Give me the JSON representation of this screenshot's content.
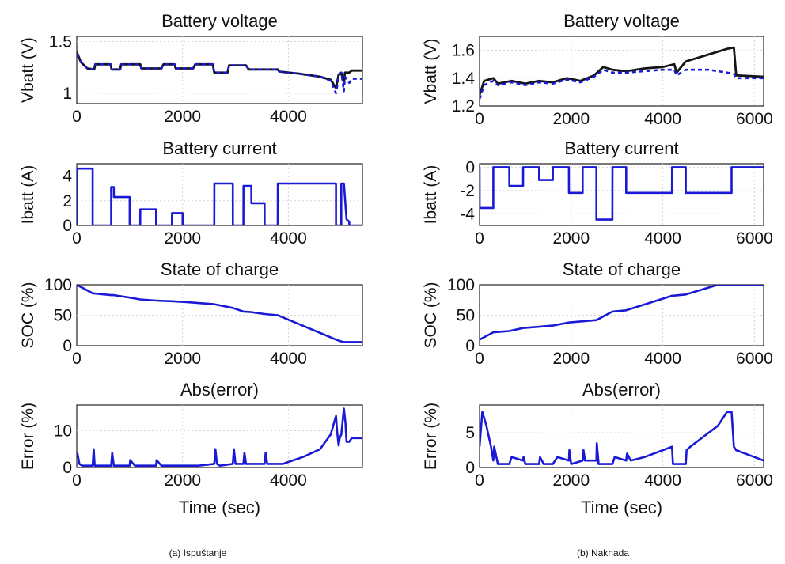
{
  "captions": {
    "left": "(a) Ispuštanje",
    "right": "(b) Naknada"
  },
  "colors": {
    "true": "#151515",
    "estimate": "#1a1ad6"
  },
  "chart_data": [
    {
      "id": "L_volt",
      "type": "line",
      "title": "Battery voltage",
      "ylabel": "Vbatt (V)",
      "xlabel": "",
      "xlim": [
        0,
        5400
      ],
      "ylim": [
        0.9,
        1.55
      ],
      "xticks": [
        0,
        2000,
        4000
      ],
      "yticks": [
        1,
        1.5
      ],
      "yticklabels": [
        "1",
        "1.5"
      ],
      "grid": true,
      "series": [
        {
          "role": "true",
          "style": "solid",
          "x": [
            0,
            80,
            200,
            330,
            350,
            640,
            660,
            820,
            840,
            1200,
            1220,
            1600,
            1640,
            1850,
            1870,
            2200,
            2240,
            2570,
            2600,
            2850,
            2880,
            3000,
            3200,
            3250,
            3500,
            3800,
            3830,
            4200,
            4600,
            4800,
            4900,
            4950,
            5000,
            5050,
            5070,
            5150,
            5200,
            5400
          ],
          "y": [
            1.4,
            1.3,
            1.24,
            1.23,
            1.28,
            1.28,
            1.23,
            1.23,
            1.28,
            1.28,
            1.24,
            1.24,
            1.28,
            1.28,
            1.24,
            1.24,
            1.28,
            1.28,
            1.2,
            1.2,
            1.27,
            1.27,
            1.27,
            1.23,
            1.23,
            1.23,
            1.21,
            1.19,
            1.16,
            1.13,
            1.05,
            1.18,
            1.2,
            1.1,
            1.2,
            1.2,
            1.22,
            1.22
          ]
        },
        {
          "role": "estimate",
          "style": "dashed",
          "x": [
            0,
            80,
            200,
            330,
            350,
            640,
            660,
            820,
            840,
            1200,
            1220,
            1600,
            1640,
            1850,
            1870,
            2200,
            2240,
            2570,
            2600,
            2850,
            2880,
            3000,
            3200,
            3250,
            3500,
            3800,
            3830,
            4200,
            4600,
            4800,
            4900,
            4950,
            5000,
            5050,
            5070,
            5150,
            5200,
            5400
          ],
          "y": [
            1.38,
            1.3,
            1.24,
            1.23,
            1.28,
            1.28,
            1.23,
            1.23,
            1.28,
            1.28,
            1.24,
            1.24,
            1.28,
            1.28,
            1.24,
            1.24,
            1.28,
            1.28,
            1.2,
            1.2,
            1.27,
            1.27,
            1.27,
            1.23,
            1.23,
            1.23,
            1.21,
            1.19,
            1.16,
            1.12,
            1.0,
            1.16,
            1.2,
            1.02,
            1.16,
            1.1,
            1.14,
            1.14
          ]
        }
      ]
    },
    {
      "id": "L_curr",
      "type": "line",
      "title": "Battery current",
      "ylabel": "Ibatt (A)",
      "xlabel": "",
      "xlim": [
        0,
        5400
      ],
      "ylim": [
        0,
        5
      ],
      "xticks": [
        0,
        2000,
        4000
      ],
      "yticks": [
        0,
        2,
        4
      ],
      "yticklabels": [
        "0",
        "2",
        "4"
      ],
      "grid": true,
      "series": [
        {
          "role": "estimate",
          "style": "solid",
          "x": [
            0,
            1,
            300,
            301,
            650,
            651,
            700,
            701,
            1000,
            1001,
            1200,
            1201,
            1500,
            1501,
            1800,
            1801,
            2000,
            2001,
            2300,
            2301,
            2600,
            2601,
            2950,
            2951,
            3150,
            3151,
            3300,
            3301,
            3550,
            3551,
            3800,
            3801,
            4900,
            4901,
            5000,
            5001,
            5050,
            5100,
            5150,
            5151,
            5400
          ],
          "y": [
            0,
            4.6,
            4.6,
            0,
            0,
            3.1,
            3.1,
            2.3,
            2.3,
            0,
            0,
            1.3,
            1.3,
            0,
            0,
            1.0,
            1.0,
            0,
            0,
            0,
            0,
            3.4,
            3.4,
            0,
            0,
            3.2,
            3.2,
            1.8,
            1.8,
            0,
            0,
            3.4,
            3.4,
            0,
            0,
            3.4,
            3.4,
            0.5,
            0.3,
            0,
            0
          ]
        }
      ]
    },
    {
      "id": "L_soc",
      "type": "line",
      "title": "State of charge",
      "ylabel": "SOC (%)",
      "xlabel": "",
      "xlim": [
        0,
        5400
      ],
      "ylim": [
        0,
        100
      ],
      "xticks": [
        0,
        2000,
        4000
      ],
      "yticks": [
        0,
        50,
        100
      ],
      "yticklabels": [
        "0",
        "50",
        "100"
      ],
      "grid": true,
      "series": [
        {
          "role": "estimate",
          "style": "solid",
          "x": [
            0,
            300,
            650,
            700,
            1000,
            1200,
            1500,
            1800,
            2000,
            2300,
            2600,
            2950,
            3150,
            3300,
            3550,
            3800,
            4900,
            5000,
            5050,
            5150,
            5400
          ],
          "y": [
            100,
            86,
            83,
            83,
            79,
            76,
            74,
            73,
            72,
            70,
            68,
            62,
            56,
            55,
            52,
            50,
            10,
            7,
            6,
            6,
            6
          ]
        }
      ]
    },
    {
      "id": "L_err",
      "type": "line",
      "title": "Abs(error)",
      "ylabel": "Error (%)",
      "xlabel": "Time (sec)",
      "xlim": [
        0,
        5400
      ],
      "ylim": [
        0,
        17
      ],
      "xticks": [
        0,
        2000,
        4000
      ],
      "yticks": [
        0,
        10
      ],
      "yticklabels": [
        "0",
        "10"
      ],
      "grid": true,
      "series": [
        {
          "role": "estimate",
          "style": "solid",
          "x": [
            0,
            10,
            50,
            100,
            300,
            320,
            340,
            400,
            650,
            670,
            700,
            1000,
            1010,
            1100,
            1200,
            1500,
            1510,
            1600,
            1800,
            2000,
            2300,
            2600,
            2620,
            2650,
            2700,
            2950,
            2970,
            3000,
            3150,
            3170,
            3200,
            3550,
            3570,
            3600,
            3800,
            3900,
            4000,
            4300,
            4600,
            4800,
            4900,
            4920,
            4950,
            4970,
            5000,
            5050,
            5080,
            5100,
            5150,
            5200,
            5400
          ],
          "y": [
            3,
            4,
            1,
            0.5,
            0.5,
            5,
            0.5,
            0.5,
            0.5,
            4,
            0.5,
            0.5,
            2,
            0.5,
            0.5,
            0.5,
            2,
            0.5,
            0.5,
            0.5,
            0.5,
            1,
            5,
            1,
            0.5,
            1,
            5,
            1,
            1,
            4,
            1,
            1,
            4,
            1,
            1,
            1,
            1.5,
            3,
            5,
            9,
            14,
            10,
            6,
            8,
            9,
            16,
            12,
            7,
            7,
            8,
            8
          ]
        }
      ]
    },
    {
      "id": "R_volt",
      "type": "line",
      "title": "Battery voltage",
      "ylabel": "Vbatt (V)",
      "xlabel": "",
      "xlim": [
        0,
        6200
      ],
      "ylim": [
        1.2,
        1.7
      ],
      "xticks": [
        0,
        2000,
        4000,
        6000
      ],
      "yticks": [
        1.2,
        1.4,
        1.6
      ],
      "yticklabels": [
        "1.2",
        "1.4",
        "1.6"
      ],
      "grid": true,
      "series": [
        {
          "role": "true",
          "style": "solid",
          "x": [
            0,
            100,
            300,
            400,
            700,
            1000,
            1300,
            1600,
            1900,
            2200,
            2500,
            2700,
            2900,
            3200,
            3600,
            4000,
            4250,
            4300,
            4500,
            5000,
            5400,
            5550,
            5600,
            6200
          ],
          "y": [
            1.28,
            1.38,
            1.4,
            1.36,
            1.38,
            1.36,
            1.38,
            1.37,
            1.4,
            1.38,
            1.42,
            1.48,
            1.46,
            1.45,
            1.47,
            1.48,
            1.5,
            1.44,
            1.52,
            1.57,
            1.61,
            1.62,
            1.42,
            1.41
          ]
        },
        {
          "role": "estimate",
          "style": "dashed",
          "x": [
            0,
            100,
            300,
            400,
            700,
            1000,
            1300,
            1600,
            1900,
            2200,
            2500,
            2700,
            2900,
            3200,
            3600,
            4000,
            4250,
            4300,
            4500,
            5000,
            5400,
            5550,
            5600,
            6200
          ],
          "y": [
            1.25,
            1.35,
            1.38,
            1.35,
            1.37,
            1.35,
            1.37,
            1.36,
            1.39,
            1.37,
            1.41,
            1.46,
            1.44,
            1.44,
            1.45,
            1.46,
            1.46,
            1.42,
            1.46,
            1.46,
            1.44,
            1.43,
            1.4,
            1.4
          ]
        }
      ]
    },
    {
      "id": "R_curr",
      "type": "line",
      "title": "Battery current",
      "ylabel": "Ibatt (A)",
      "xlabel": "",
      "xlim": [
        0,
        6200
      ],
      "ylim": [
        -5,
        0.3
      ],
      "xticks": [
        0,
        2000,
        4000,
        6000
      ],
      "yticks": [
        -4,
        -2,
        0
      ],
      "yticklabels": [
        "-4",
        "-2",
        "0"
      ],
      "grid": true,
      "series": [
        {
          "role": "estimate",
          "style": "solid",
          "x": [
            0,
            1,
            300,
            301,
            650,
            651,
            950,
            951,
            1300,
            1301,
            1600,
            1601,
            1950,
            1951,
            2250,
            2251,
            2550,
            2551,
            2900,
            2901,
            3200,
            3201,
            4200,
            4201,
            4500,
            4501,
            5500,
            5501,
            6200
          ],
          "y": [
            0,
            -3.5,
            -3.5,
            0,
            0,
            -1.6,
            -1.6,
            0,
            0,
            -1.1,
            -1.1,
            0,
            0,
            -2.2,
            -2.2,
            0,
            0,
            -4.5,
            -4.5,
            0,
            0,
            -2.2,
            -2.2,
            0,
            0,
            -2.2,
            -2.2,
            0,
            0
          ]
        }
      ]
    },
    {
      "id": "R_soc",
      "type": "line",
      "title": "State of charge",
      "ylabel": "SOC (%)",
      "xlabel": "",
      "xlim": [
        0,
        6200
      ],
      "ylim": [
        0,
        100
      ],
      "xticks": [
        0,
        2000,
        4000,
        6000
      ],
      "yticks": [
        0,
        50,
        100
      ],
      "yticklabels": [
        "0",
        "50",
        "100"
      ],
      "grid": true,
      "series": [
        {
          "role": "estimate",
          "style": "solid",
          "x": [
            0,
            300,
            650,
            950,
            1300,
            1600,
            1950,
            2250,
            2550,
            2900,
            3200,
            4200,
            4500,
            5200,
            5500,
            6200
          ],
          "y": [
            10,
            22,
            24,
            29,
            31,
            33,
            38,
            40,
            42,
            56,
            58,
            82,
            84,
            100,
            100,
            100
          ]
        }
      ]
    },
    {
      "id": "R_err",
      "type": "line",
      "title": "Abs(error)",
      "ylabel": "Error (%)",
      "xlabel": "Time (sec)",
      "xlim": [
        0,
        6200
      ],
      "ylim": [
        0,
        9
      ],
      "xticks": [
        0,
        2000,
        4000,
        6000
      ],
      "yticks": [
        0,
        5
      ],
      "yticklabels": [
        "0",
        "5"
      ],
      "grid": true,
      "series": [
        {
          "role": "estimate",
          "style": "solid",
          "x": [
            0,
            60,
            150,
            250,
            300,
            320,
            400,
            650,
            700,
            950,
            960,
            1000,
            1300,
            1320,
            1400,
            1600,
            1700,
            1950,
            1960,
            2000,
            2250,
            2270,
            2300,
            2550,
            2560,
            2600,
            2900,
            2950,
            3200,
            3220,
            3300,
            3600,
            4000,
            4200,
            4220,
            4500,
            4520,
            4600,
            5000,
            5200,
            5400,
            5500,
            5550,
            5600,
            6000,
            6200
          ],
          "y": [
            3,
            8,
            6,
            3,
            1,
            3,
            0.5,
            0.5,
            1.5,
            1,
            1.5,
            0.5,
            0.5,
            1.5,
            0.5,
            0.5,
            1.5,
            1,
            2.5,
            0.5,
            1,
            2.5,
            1,
            1,
            3.5,
            0.5,
            0.5,
            1.5,
            1,
            2,
            1,
            1.5,
            2.5,
            3,
            0.5,
            0.5,
            2.5,
            3,
            5,
            6,
            8,
            8,
            3,
            2.5,
            1.5,
            1
          ]
        }
      ]
    }
  ]
}
